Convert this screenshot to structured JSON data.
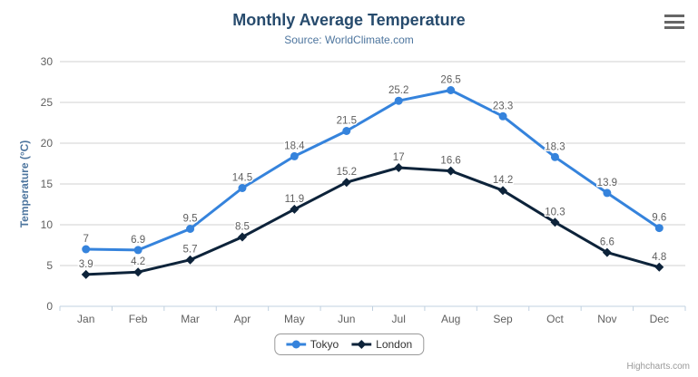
{
  "chart": {
    "credits": "Highcharts.com",
    "menu_icon": "hamburger-menu"
  },
  "chart_data": {
    "type": "line",
    "title": "Monthly Average Temperature",
    "subtitle": "Source: WorldClimate.com",
    "categories": [
      "Jan",
      "Feb",
      "Mar",
      "Apr",
      "May",
      "Jun",
      "Jul",
      "Aug",
      "Sep",
      "Oct",
      "Nov",
      "Dec"
    ],
    "series": [
      {
        "name": "Tokyo",
        "color": "#3583dc",
        "marker": "circle",
        "values": [
          7,
          6.9,
          9.5,
          14.5,
          18.4,
          21.5,
          25.2,
          26.5,
          23.3,
          18.3,
          13.9,
          9.6
        ]
      },
      {
        "name": "London",
        "color": "#0d233a",
        "marker": "diamond",
        "values": [
          3.9,
          4.2,
          5.7,
          8.5,
          11.9,
          15.2,
          17,
          16.6,
          14.2,
          10.3,
          6.6,
          4.8
        ]
      }
    ],
    "xlabel": "",
    "ylabel": "Temperature (°C)",
    "ylim": [
      0,
      30
    ],
    "ytick_step": 5,
    "grid": true,
    "data_labels": true,
    "legend_position": "bottom"
  },
  "colors": {
    "title": "#274b6d",
    "subtitle": "#4d759e",
    "axis_label": "#606060",
    "axis_line": "#c0d0e0",
    "gridline": "#d2d2d2",
    "data_label": "#606060",
    "legend_text": "#333333",
    "legend_border": "#999999",
    "credits": "#999999",
    "menu_icon": "#666666"
  }
}
